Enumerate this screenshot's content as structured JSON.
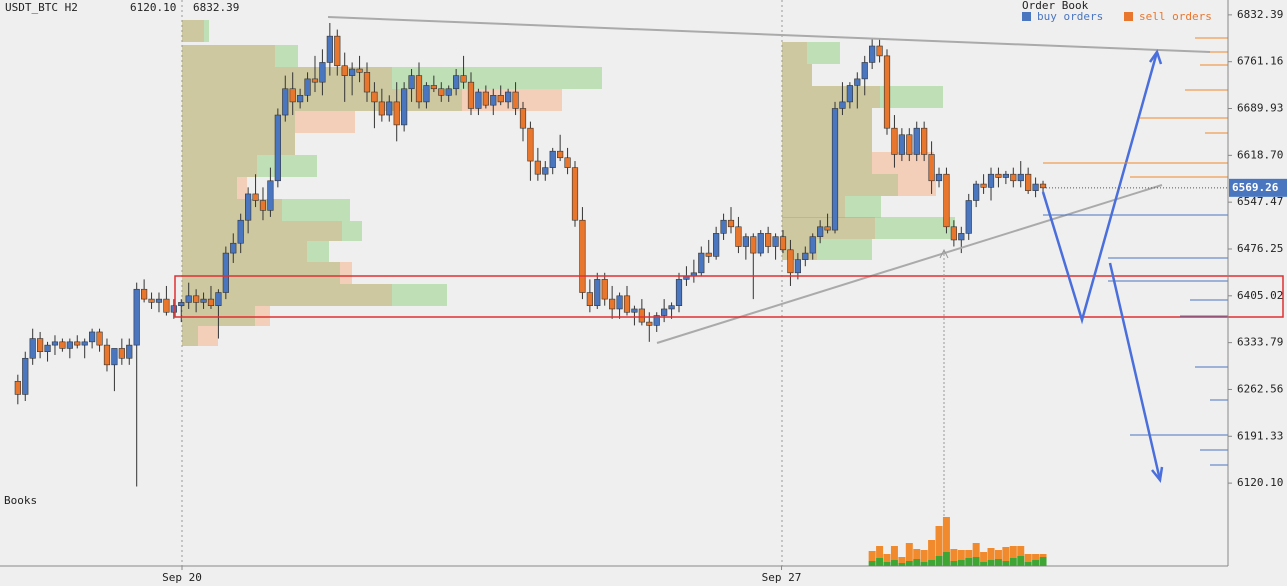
{
  "chart_data": {
    "type": "candlestick",
    "title": "USDT_BTC H2",
    "header_values": [
      "6120.10",
      "6832.39"
    ],
    "side_label": "Books",
    "up_color": "#4a76c0",
    "down_color": "#e8762d",
    "ylim": [
      5994,
      6855
    ],
    "yticks": [
      6832.39,
      6761.16,
      6689.93,
      {
        "value": 6618.7,
        "label": "6618.70"
      },
      6547.47,
      6476.25,
      6405.02,
      6333.79,
      6262.56,
      6191.33,
      {
        "value": 6120.1,
        "label": "6120.10"
      }
    ],
    "xlim": [
      -2.4,
      162.9
    ],
    "xticks": [
      {
        "value": 22.1,
        "label": "Sep 20"
      },
      {
        "value": 102.8,
        "label": "Sep 27"
      }
    ],
    "last_price": 6569.26,
    "order_book": {
      "title": "Order Book",
      "series": [
        {
          "name": "buy orders",
          "color": "#4a76c0"
        },
        {
          "name": "sell orders",
          "color": "#e8762d"
        }
      ]
    },
    "ohlc": [
      [
        6275,
        6285,
        6240,
        6255
      ],
      [
        6255,
        6320,
        6245,
        6310
      ],
      [
        6310,
        6355,
        6300,
        6340
      ],
      [
        6340,
        6350,
        6310,
        6320
      ],
      [
        6320,
        6335,
        6305,
        6330
      ],
      [
        6330,
        6345,
        6315,
        6335
      ],
      [
        6335,
        6340,
        6320,
        6325
      ],
      [
        6325,
        6340,
        6310,
        6335
      ],
      [
        6335,
        6345,
        6325,
        6330
      ],
      [
        6330,
        6340,
        6310,
        6335
      ],
      [
        6335,
        6355,
        6325,
        6350
      ],
      [
        6350,
        6355,
        6320,
        6330
      ],
      [
        6330,
        6340,
        6290,
        6300
      ],
      [
        6300,
        6320,
        6260,
        6325
      ],
      [
        6325,
        6340,
        6300,
        6310
      ],
      [
        6310,
        6340,
        6300,
        6330
      ],
      [
        6330,
        6425,
        6115,
        6415
      ],
      [
        6415,
        6430,
        6395,
        6400
      ],
      [
        6400,
        6410,
        6385,
        6395
      ],
      [
        6395,
        6410,
        6380,
        6400
      ],
      [
        6400,
        6420,
        6375,
        6380
      ],
      [
        6380,
        6400,
        6370,
        6390
      ],
      [
        6390,
        6400,
        6365,
        6395
      ],
      [
        6395,
        6425,
        6385,
        6405
      ],
      [
        6405,
        6415,
        6380,
        6395
      ],
      [
        6395,
        6410,
        6385,
        6400
      ],
      [
        6400,
        6420,
        6385,
        6390
      ],
      [
        6390,
        6415,
        6340,
        6410
      ],
      [
        6410,
        6480,
        6400,
        6470
      ],
      [
        6470,
        6500,
        6455,
        6485
      ],
      [
        6485,
        6530,
        6470,
        6520
      ],
      [
        6520,
        6570,
        6500,
        6560
      ],
      [
        6560,
        6590,
        6540,
        6550
      ],
      [
        6550,
        6570,
        6520,
        6535
      ],
      [
        6535,
        6600,
        6525,
        6580
      ],
      [
        6580,
        6690,
        6570,
        6680
      ],
      [
        6680,
        6740,
        6670,
        6720
      ],
      [
        6720,
        6745,
        6680,
        6700
      ],
      [
        6700,
        6720,
        6690,
        6710
      ],
      [
        6710,
        6745,
        6700,
        6735
      ],
      [
        6735,
        6770,
        6715,
        6730
      ],
      [
        6730,
        6780,
        6710,
        6760
      ],
      [
        6760,
        6820,
        6740,
        6800
      ],
      [
        6800,
        6810,
        6740,
        6755
      ],
      [
        6755,
        6775,
        6700,
        6740
      ],
      [
        6740,
        6760,
        6710,
        6750
      ],
      [
        6750,
        6770,
        6730,
        6745
      ],
      [
        6745,
        6760,
        6700,
        6715
      ],
      [
        6715,
        6730,
        6660,
        6700
      ],
      [
        6700,
        6720,
        6670,
        6680
      ],
      [
        6680,
        6710,
        6670,
        6700
      ],
      [
        6700,
        6730,
        6640,
        6665
      ],
      [
        6665,
        6730,
        6655,
        6720
      ],
      [
        6720,
        6750,
        6700,
        6740
      ],
      [
        6740,
        6760,
        6690,
        6700
      ],
      [
        6700,
        6730,
        6690,
        6725
      ],
      [
        6725,
        6740,
        6715,
        6720
      ],
      [
        6720,
        6730,
        6700,
        6710
      ],
      [
        6710,
        6725,
        6700,
        6720
      ],
      [
        6720,
        6750,
        6710,
        6740
      ],
      [
        6740,
        6770,
        6720,
        6730
      ],
      [
        6730,
        6745,
        6680,
        6690
      ],
      [
        6690,
        6720,
        6680,
        6715
      ],
      [
        6715,
        6725,
        6690,
        6695
      ],
      [
        6695,
        6720,
        6680,
        6710
      ],
      [
        6710,
        6725,
        6695,
        6700
      ],
      [
        6700,
        6720,
        6690,
        6715
      ],
      [
        6715,
        6730,
        6680,
        6690
      ],
      [
        6690,
        6700,
        6640,
        6660
      ],
      [
        6660,
        6670,
        6580,
        6610
      ],
      [
        6610,
        6630,
        6580,
        6590
      ],
      [
        6590,
        6610,
        6580,
        6600
      ],
      [
        6600,
        6630,
        6590,
        6625
      ],
      [
        6625,
        6650,
        6610,
        6615
      ],
      [
        6615,
        6630,
        6590,
        6600
      ],
      [
        6600,
        6610,
        6510,
        6520
      ],
      [
        6520,
        6540,
        6400,
        6410
      ],
      [
        6410,
        6430,
        6380,
        6390
      ],
      [
        6390,
        6440,
        6385,
        6430
      ],
      [
        6430,
        6440,
        6390,
        6400
      ],
      [
        6400,
        6420,
        6370,
        6385
      ],
      [
        6385,
        6410,
        6370,
        6405
      ],
      [
        6405,
        6420,
        6375,
        6380
      ],
      [
        6380,
        6390,
        6360,
        6385
      ],
      [
        6385,
        6400,
        6360,
        6365
      ],
      [
        6365,
        6380,
        6335,
        6360
      ],
      [
        6360,
        6380,
        6350,
        6375
      ],
      [
        6375,
        6400,
        6365,
        6385
      ],
      [
        6385,
        6395,
        6370,
        6390
      ],
      [
        6390,
        6440,
        6380,
        6430
      ],
      [
        6430,
        6450,
        6420,
        6435
      ],
      [
        6435,
        6460,
        6425,
        6440
      ],
      [
        6440,
        6480,
        6435,
        6470
      ],
      [
        6470,
        6490,
        6455,
        6465
      ],
      [
        6465,
        6510,
        6460,
        6500
      ],
      [
        6500,
        6530,
        6490,
        6520
      ],
      [
        6520,
        6540,
        6500,
        6510
      ],
      [
        6510,
        6525,
        6470,
        6480
      ],
      [
        6480,
        6500,
        6460,
        6495
      ],
      [
        6495,
        6500,
        6400,
        6470
      ],
      [
        6470,
        6505,
        6465,
        6500
      ],
      [
        6500,
        6510,
        6470,
        6480
      ],
      [
        6480,
        6500,
        6460,
        6495
      ],
      [
        6495,
        6505,
        6470,
        6475
      ],
      [
        6475,
        6490,
        6420,
        6440
      ],
      [
        6440,
        6470,
        6430,
        6460
      ],
      [
        6460,
        6480,
        6450,
        6470
      ],
      [
        6470,
        6500,
        6460,
        6495
      ],
      [
        6495,
        6520,
        6485,
        6510
      ],
      [
        6510,
        6530,
        6500,
        6505
      ],
      [
        6505,
        6700,
        6500,
        6690
      ],
      [
        6690,
        6730,
        6680,
        6700
      ],
      [
        6700,
        6730,
        6690,
        6725
      ],
      [
        6725,
        6745,
        6690,
        6735
      ],
      [
        6735,
        6770,
        6710,
        6760
      ],
      [
        6760,
        6795,
        6750,
        6785
      ],
      [
        6785,
        6795,
        6760,
        6770
      ],
      [
        6770,
        6780,
        6650,
        6660
      ],
      [
        6660,
        6680,
        6600,
        6620
      ],
      [
        6620,
        6660,
        6610,
        6650
      ],
      [
        6650,
        6660,
        6610,
        6620
      ],
      [
        6620,
        6670,
        6610,
        6660
      ],
      [
        6660,
        6670,
        6610,
        6620
      ],
      [
        6620,
        6640,
        6560,
        6580
      ],
      [
        6580,
        6600,
        6570,
        6590
      ],
      [
        6590,
        6600,
        6500,
        6510
      ],
      [
        6510,
        6520,
        6480,
        6490
      ],
      [
        6490,
        6510,
        6470,
        6500
      ],
      [
        6500,
        6560,
        6490,
        6550
      ],
      [
        6550,
        6580,
        6540,
        6575
      ],
      [
        6575,
        6590,
        6560,
        6570
      ],
      [
        6570,
        6600,
        6550,
        6590
      ],
      [
        6590,
        6600,
        6570,
        6585
      ],
      [
        6585,
        6595,
        6575,
        6590
      ],
      [
        6590,
        6600,
        6570,
        6580
      ],
      [
        6580,
        6610,
        6570,
        6590
      ],
      [
        6590,
        6600,
        6560,
        6565
      ],
      [
        6565,
        6585,
        6555,
        6575
      ],
      [
        6575,
        6580,
        6560,
        6569.26
      ]
    ],
    "volume": {
      "buy_color": "#3fa535",
      "sell_color": "#f08a2c",
      "buy": [
        5,
        8,
        4,
        6,
        3,
        5,
        7,
        4,
        6,
        10,
        14,
        5,
        6,
        8,
        9,
        4,
        6,
        7,
        5,
        8,
        10,
        4,
        6,
        9
      ],
      "sell": [
        10,
        12,
        8,
        14,
        6,
        18,
        10,
        12,
        20,
        30,
        35,
        12,
        10,
        8,
        14,
        10,
        12,
        9,
        14,
        12,
        10,
        8,
        6,
        3
      ]
    }
  }
}
